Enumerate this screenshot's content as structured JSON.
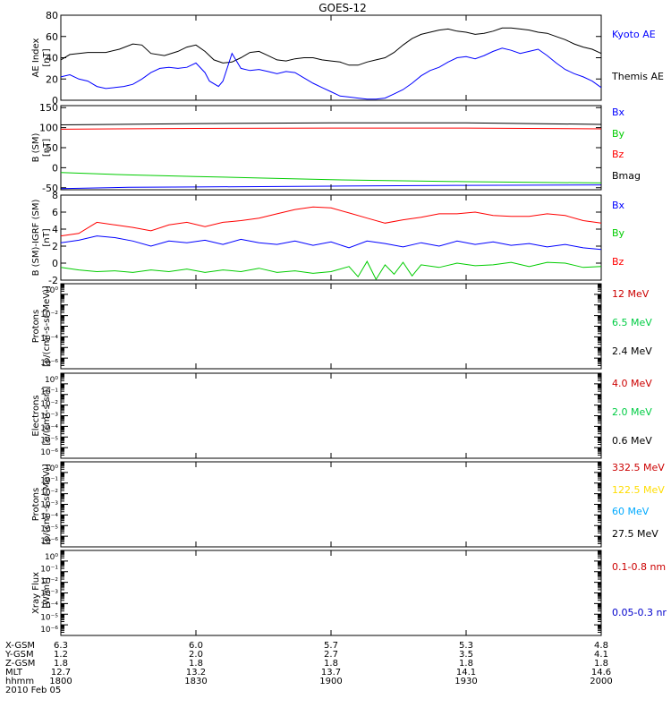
{
  "chart_data": {
    "type": "line",
    "title": "GOES-12",
    "panels": [
      {
        "id": "ae",
        "ylabel": [
          "AE Index",
          "[nT]"
        ],
        "scale": "linear",
        "ylim": [
          0,
          80
        ],
        "ticks": [
          0,
          20,
          40,
          60,
          80
        ],
        "legend": [
          {
            "label": "Kyoto AE",
            "color": "#0000ff"
          },
          {
            "label": "Themis AE",
            "color": "#000000"
          }
        ],
        "series": [
          {
            "name": "Themis AE",
            "color": "#000000",
            "x": [
              1800,
              1802,
              1806,
              1810,
              1813,
              1816,
              1818,
              1820,
              1823,
              1826,
              1828,
              1830,
              1832,
              1834,
              1836,
              1838,
              1840,
              1842,
              1844,
              1846,
              1848,
              1850,
              1852,
              1854,
              1856,
              1858,
              1900,
              1902,
              1904,
              1906,
              1908,
              1910,
              1912,
              1914,
              1916,
              1918,
              1920,
              1922,
              1924,
              1926,
              1928,
              1930,
              1932,
              1934,
              1936,
              1938,
              1940,
              1942,
              1944,
              1946,
              1948,
              1950,
              1952,
              1954,
              1956,
              1958,
              2000
            ],
            "y": [
              38,
              43,
              45,
              45,
              48,
              53,
              52,
              44,
              42,
              46,
              50,
              52,
              46,
              38,
              35,
              36,
              40,
              45,
              46,
              42,
              38,
              37,
              39,
              40,
              40,
              38,
              37,
              36,
              33,
              33,
              36,
              38,
              40,
              45,
              52,
              58,
              62,
              64,
              66,
              67,
              65,
              64,
              62,
              63,
              65,
              68,
              68,
              67,
              66,
              64,
              63,
              60,
              57,
              53,
              50,
              48,
              44
            ]
          },
          {
            "name": "Kyoto AE",
            "color": "#0000ff",
            "x": [
              1800,
              1802,
              1804,
              1806,
              1808,
              1810,
              1812,
              1814,
              1816,
              1818,
              1820,
              1822,
              1824,
              1826,
              1828,
              1830,
              1832,
              1833,
              1835,
              1836,
              1838,
              1840,
              1842,
              1844,
              1846,
              1848,
              1850,
              1852,
              1854,
              1856,
              1858,
              1900,
              1902,
              1904,
              1906,
              1908,
              1910,
              1912,
              1914,
              1916,
              1918,
              1920,
              1922,
              1924,
              1926,
              1928,
              1930,
              1932,
              1934,
              1936,
              1938,
              1940,
              1942,
              1944,
              1946,
              1948,
              1950,
              1952,
              1954,
              1956,
              1958,
              2000
            ],
            "y": [
              22,
              24,
              20,
              18,
              13,
              11,
              12,
              13,
              15,
              20,
              26,
              30,
              31,
              30,
              31,
              35,
              26,
              18,
              13,
              18,
              44,
              30,
              28,
              29,
              27,
              25,
              27,
              26,
              21,
              16,
              12,
              8,
              4,
              3,
              2,
              1,
              1,
              2,
              6,
              10,
              16,
              23,
              28,
              31,
              36,
              40,
              41,
              39,
              42,
              46,
              49,
              47,
              44,
              46,
              48,
              42,
              35,
              29,
              25,
              22,
              18,
              12
            ]
          }
        ]
      },
      {
        "id": "bsm",
        "ylabel": [
          "B (SM)",
          "[nT]"
        ],
        "scale": "linear",
        "ylim": [
          -55,
          155
        ],
        "ticks": [
          -50,
          0,
          50,
          100,
          150
        ],
        "legend": [
          {
            "label": "Bx",
            "color": "#0000ff"
          },
          {
            "label": "By",
            "color": "#00cc00"
          },
          {
            "label": "Bz",
            "color": "#ff0000"
          },
          {
            "label": "Bmag",
            "color": "#000000"
          }
        ],
        "series": [
          {
            "name": "Bmag",
            "color": "#000000",
            "x": [
              1800,
              1830,
              1900,
              1930,
              2000
            ],
            "y": [
              107,
              110,
              112,
              112,
              108
            ]
          },
          {
            "name": "Bz",
            "color": "#ff0000",
            "x": [
              1800,
              1830,
              1900,
              1930,
              2000
            ],
            "y": [
              96,
              98,
              99,
              99,
              97
            ]
          },
          {
            "name": "By",
            "color": "#00cc00",
            "x": [
              1800,
              1815,
              1830,
              1845,
              1900,
              1930,
              2000
            ],
            "y": [
              -12,
              -18,
              -22,
              -26,
              -30,
              -35,
              -38
            ]
          },
          {
            "name": "Bx",
            "color": "#0000ff",
            "x": [
              1800,
              1815,
              1830,
              1900,
              1930,
              2000
            ],
            "y": [
              -52,
              -49,
              -48,
              -46,
              -44,
              -43
            ]
          }
        ]
      },
      {
        "id": "bigrf",
        "ylabel": [
          "B (SM)-IGRF (SM)",
          "[nT]"
        ],
        "scale": "linear",
        "ylim": [
          -2,
          8
        ],
        "ticks": [
          -2,
          0,
          2,
          4,
          6,
          8
        ],
        "legend": [
          {
            "label": "Bx",
            "color": "#0000ff"
          },
          {
            "label": "By",
            "color": "#00cc00"
          },
          {
            "label": "Bz",
            "color": "#ff0000"
          }
        ],
        "series": [
          {
            "name": "Bz",
            "color": "#ff0000",
            "x": [
              1800,
              1804,
              1808,
              1812,
              1816,
              1820,
              1824,
              1828,
              1832,
              1836,
              1840,
              1844,
              1848,
              1852,
              1856,
              1900,
              1904,
              1908,
              1912,
              1916,
              1920,
              1924,
              1928,
              1932,
              1936,
              1940,
              1944,
              1948,
              1952,
              1956,
              2000
            ],
            "y": [
              3.2,
              3.5,
              4.8,
              4.5,
              4.2,
              3.8,
              4.5,
              4.8,
              4.3,
              4.8,
              5.0,
              5.3,
              5.8,
              6.3,
              6.6,
              6.5,
              5.9,
              5.3,
              4.7,
              5.1,
              5.4,
              5.8,
              5.8,
              6.0,
              5.6,
              5.5,
              5.5,
              5.8,
              5.6,
              5.0,
              4.7
            ]
          },
          {
            "name": "Bx",
            "color": "#0000ff",
            "x": [
              1800,
              1804,
              1808,
              1812,
              1816,
              1820,
              1824,
              1828,
              1832,
              1836,
              1840,
              1844,
              1848,
              1852,
              1856,
              1900,
              1904,
              1908,
              1912,
              1916,
              1920,
              1924,
              1928,
              1932,
              1936,
              1940,
              1944,
              1948,
              1952,
              1956,
              2000
            ],
            "y": [
              2.4,
              2.7,
              3.2,
              3.0,
              2.6,
              2.0,
              2.6,
              2.4,
              2.7,
              2.2,
              2.8,
              2.4,
              2.2,
              2.6,
              2.1,
              2.5,
              1.8,
              2.6,
              2.3,
              1.9,
              2.4,
              2.0,
              2.6,
              2.2,
              2.5,
              2.1,
              2.3,
              1.9,
              2.2,
              1.8,
              1.6
            ]
          },
          {
            "name": "By",
            "color": "#00cc00",
            "x": [
              1800,
              1804,
              1808,
              1812,
              1816,
              1820,
              1824,
              1828,
              1832,
              1836,
              1840,
              1844,
              1848,
              1852,
              1856,
              1900,
              1904,
              1906,
              1908,
              1910,
              1912,
              1914,
              1916,
              1918,
              1920,
              1924,
              1928,
              1932,
              1936,
              1940,
              1944,
              1948,
              1952,
              1956,
              2000
            ],
            "y": [
              -0.5,
              -0.8,
              -1.0,
              -0.9,
              -1.1,
              -0.8,
              -1.0,
              -0.7,
              -1.1,
              -0.8,
              -1.0,
              -0.6,
              -1.1,
              -0.9,
              -1.2,
              -1.0,
              -0.4,
              -1.6,
              0.2,
              -1.9,
              -0.2,
              -1.3,
              0.1,
              -1.5,
              -0.2,
              -0.5,
              0.0,
              -0.3,
              -0.2,
              0.1,
              -0.4,
              0.1,
              0.0,
              -0.5,
              -0.4
            ]
          }
        ]
      },
      {
        "id": "protons1",
        "ylabel": [
          "Protons",
          "[p/(cm²-s-sr-MeV)]"
        ],
        "scale": "log",
        "ylim": [
          -7,
          1
        ],
        "ticks": [
          "10⁰",
          "10⁻²",
          "10⁻⁴",
          "10⁻⁶"
        ],
        "legend": [
          {
            "label": "12 MeV",
            "color": "#cc0000"
          },
          {
            "label": "6.5 MeV",
            "color": "#00cc44"
          },
          {
            "label": "2.4 MeV",
            "color": "#000000"
          }
        ],
        "series": []
      },
      {
        "id": "electrons",
        "ylabel": [
          "Electrons",
          "[e/(cm²-s-sr)]"
        ],
        "scale": "log",
        "ylim": [
          -7,
          1
        ],
        "ticks": [
          "10⁰",
          "10⁻¹",
          "10⁻²",
          "10⁻³",
          "10⁻⁴",
          "10⁻⁵",
          "10⁻⁶"
        ],
        "legend": [
          {
            "label": "4.0 MeV",
            "color": "#cc0000"
          },
          {
            "label": "2.0 MeV",
            "color": "#00cc44"
          },
          {
            "label": "0.6 MeV",
            "color": "#000000"
          }
        ],
        "series": []
      },
      {
        "id": "protons2",
        "ylabel": [
          "Protons",
          "[p/(cm²-s-sr-MeV)]"
        ],
        "scale": "log",
        "ylim": [
          -7,
          1
        ],
        "ticks": [
          "10⁰",
          "10⁻¹",
          "10⁻²",
          "10⁻³",
          "10⁻⁴",
          "10⁻⁵",
          "10⁻⁶"
        ],
        "legend": [
          {
            "label": "332.5 MeV",
            "color": "#cc0000"
          },
          {
            "label": "122.5 MeV",
            "color": "#ffdd00"
          },
          {
            "label": "60 MeV",
            "color": "#00aaff"
          },
          {
            "label": "27.5 MeV",
            "color": "#000000"
          }
        ],
        "series": []
      },
      {
        "id": "xray",
        "ylabel": [
          "Xray Flux",
          "[W/m²]"
        ],
        "scale": "log",
        "ylim": [
          -7,
          1
        ],
        "ticks": [
          "10⁰",
          "10⁻¹",
          "10⁻²",
          "10⁻³",
          "10⁻⁴",
          "10⁻⁵",
          "10⁻⁶"
        ],
        "legend": [
          {
            "label": "0.1-0.8 nm",
            "color": "#cc0000"
          },
          {
            "label": "0.05-0.3 nr",
            "color": "#0000cc"
          }
        ],
        "series": []
      }
    ],
    "x_axis": {
      "rows": [
        {
          "label": "X-GSM",
          "values": [
            "6.3",
            "6.0",
            "5.7",
            "5.3",
            "4.8"
          ]
        },
        {
          "label": "Y-GSM",
          "values": [
            "1.2",
            "2.0",
            "2.7",
            "3.5",
            "4.1"
          ]
        },
        {
          "label": "Z-GSM",
          "values": [
            "1.8",
            "1.8",
            "1.8",
            "1.8",
            "1.8"
          ]
        },
        {
          "label": "MLT",
          "values": [
            "12.7",
            "13.2",
            "13.7",
            "14.1",
            "14.6"
          ]
        },
        {
          "label": "hhmm",
          "values": [
            "1800",
            "1830",
            "1900",
            "1930",
            "2000"
          ]
        }
      ],
      "date": "2010 Feb 05",
      "tick_times": [
        1800,
        1830,
        1900,
        1930,
        2000
      ],
      "xlim": [
        1800,
        2000
      ]
    }
  }
}
